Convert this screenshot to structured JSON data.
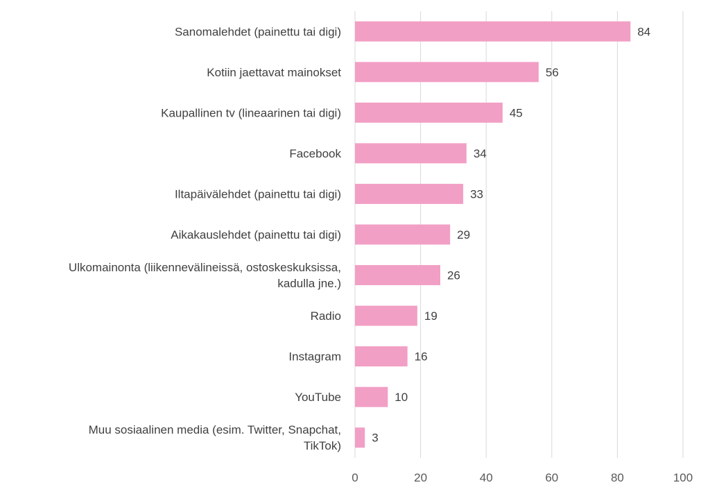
{
  "chart_data": {
    "type": "bar",
    "orientation": "horizontal",
    "title": "",
    "xlabel": "",
    "ylabel": "",
    "categories": [
      [
        "Sanomalehdet (painettu tai digi)"
      ],
      [
        "Kotiin jaettavat mainokset"
      ],
      [
        "Kaupallinen tv (lineaarinen tai digi)"
      ],
      [
        "Facebook"
      ],
      [
        "Iltapäivälehdet (painettu tai digi)"
      ],
      [
        "Aikakauslehdet (painettu tai digi)"
      ],
      [
        "Ulkomainonta (liikennevälineissä, ostoskeskuksissa,",
        "kadulla jne.)"
      ],
      [
        "Radio"
      ],
      [
        "Instagram"
      ],
      [
        "YouTube"
      ],
      [
        "Muu sosiaalinen media (esim. Twitter, Snapchat,",
        "TikTok)"
      ]
    ],
    "values": [
      84,
      56,
      45,
      34,
      33,
      29,
      26,
      19,
      16,
      10,
      3
    ],
    "xlim": [
      0,
      100
    ],
    "xticks": [
      0,
      20,
      40,
      60,
      80,
      100
    ],
    "grid": true,
    "legend": "none",
    "bar_color": "#f29fc5",
    "data_labels": true
  }
}
